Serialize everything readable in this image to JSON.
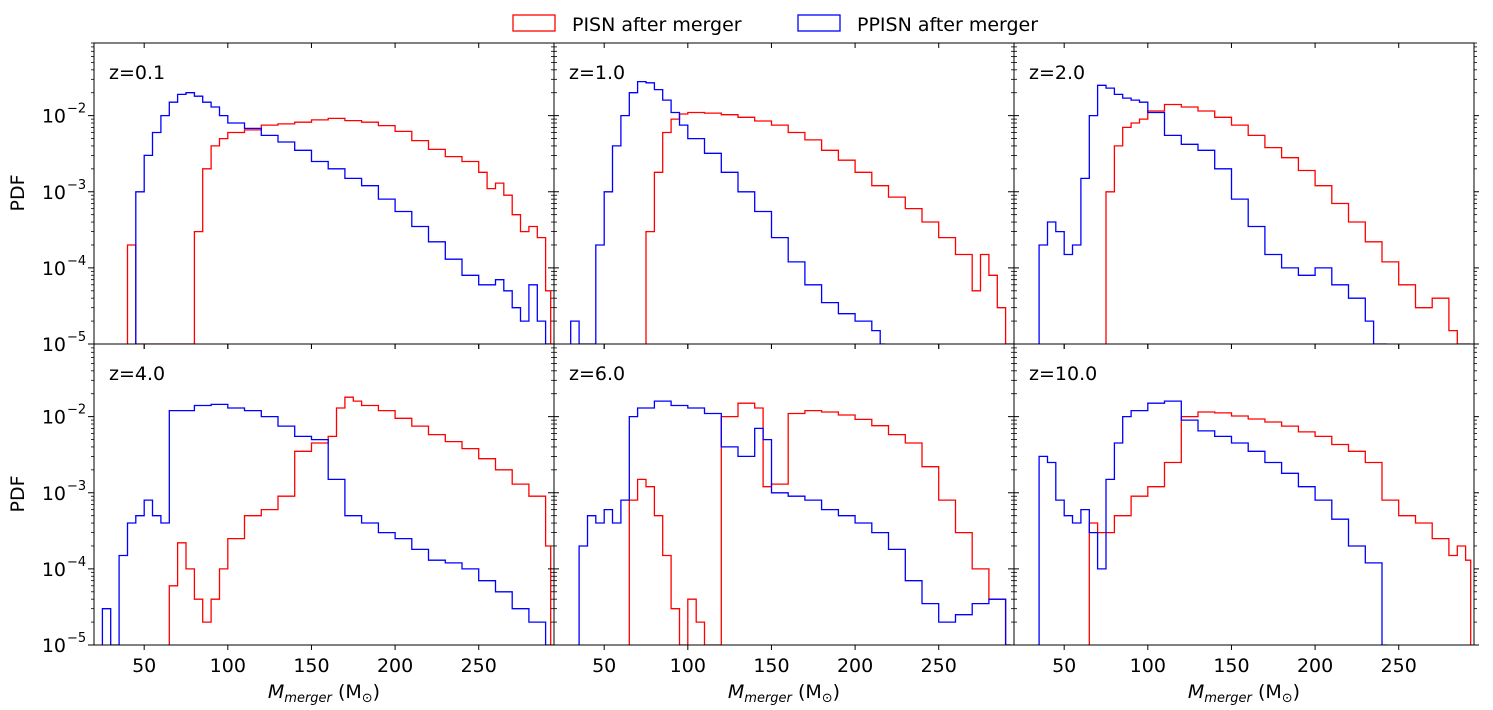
{
  "legend": [
    {
      "label": "PISN after merger",
      "color": "#ff0000"
    },
    {
      "label": "PPISN after merger",
      "color": "#0000ff"
    }
  ],
  "ylabel": "PDF",
  "xlabel_main": "M",
  "xlabel_sub": "merger",
  "xlabel_unit_open": " (M",
  "xlabel_unit_sub": "⊙",
  "xlabel_unit_close": ")",
  "chart_data": [
    {
      "type": "histogram-step",
      "panel": "z=0.1",
      "yscale": "log",
      "xlim": [
        20,
        295
      ],
      "ylim": [
        1e-05,
        0.09
      ],
      "series": [
        {
          "name": "PISN after merger",
          "color": "#ff0000",
          "x": [
            40,
            45,
            75,
            80,
            85,
            90,
            95,
            100,
            110,
            120,
            130,
            140,
            150,
            160,
            170,
            180,
            190,
            200,
            210,
            220,
            230,
            240,
            250,
            255,
            260,
            265,
            270,
            275,
            280,
            285,
            290,
            293
          ],
          "y": [
            0.0002,
            1e-05,
            1e-05,
            0.0003,
            0.002,
            0.004,
            0.005,
            0.006,
            0.0065,
            0.0075,
            0.0078,
            0.0082,
            0.0088,
            0.0092,
            0.0086,
            0.0082,
            0.0074,
            0.0062,
            0.0047,
            0.0036,
            0.0029,
            0.0025,
            0.0018,
            0.0011,
            0.0013,
            0.0009,
            0.0005,
            0.0003,
            0.00035,
            0.00025,
            5e-05,
            1e-05
          ]
        },
        {
          "name": "PPISN after merger",
          "color": "#0000ff",
          "x": [
            45,
            50,
            55,
            60,
            65,
            70,
            75,
            80,
            85,
            90,
            95,
            100,
            110,
            120,
            130,
            140,
            150,
            160,
            170,
            180,
            190,
            200,
            210,
            220,
            230,
            240,
            250,
            260,
            265,
            270,
            275,
            280,
            285,
            290
          ],
          "y": [
            0.001,
            0.003,
            0.006,
            0.01,
            0.015,
            0.019,
            0.02,
            0.018,
            0.015,
            0.013,
            0.01,
            0.008,
            0.0068,
            0.0055,
            0.0045,
            0.0035,
            0.0025,
            0.002,
            0.0015,
            0.0012,
            0.0008,
            0.00055,
            0.00035,
            0.00022,
            0.00013,
            8e-05,
            6e-05,
            7e-05,
            5e-05,
            3e-05,
            2e-05,
            6e-05,
            2e-05,
            1e-05
          ]
        }
      ]
    },
    {
      "type": "histogram-step",
      "panel": "z=1.0",
      "yscale": "log",
      "xlim": [
        20,
        295
      ],
      "ylim": [
        1e-05,
        0.09
      ],
      "series": [
        {
          "name": "PISN after merger",
          "color": "#ff0000",
          "x": [
            75,
            80,
            85,
            90,
            95,
            100,
            110,
            120,
            130,
            140,
            150,
            160,
            170,
            180,
            190,
            200,
            210,
            220,
            230,
            240,
            250,
            260,
            270,
            275,
            280,
            285,
            290,
            295
          ],
          "y": [
            0.0003,
            0.0018,
            0.006,
            0.009,
            0.0105,
            0.011,
            0.0108,
            0.0103,
            0.0095,
            0.0085,
            0.0075,
            0.006,
            0.0048,
            0.0035,
            0.0026,
            0.0018,
            0.0012,
            0.00085,
            0.0006,
            0.0004,
            0.00025,
            0.00015,
            5e-05,
            0.00015,
            8e-05,
            3e-05,
            1e-05,
            1e-05
          ]
        },
        {
          "name": "PPISN after merger",
          "color": "#0000ff",
          "x": [
            30,
            35,
            40,
            45,
            50,
            55,
            60,
            65,
            70,
            75,
            80,
            85,
            90,
            95,
            100,
            110,
            120,
            130,
            140,
            150,
            160,
            170,
            180,
            190,
            200,
            210,
            215
          ],
          "y": [
            2e-05,
            1e-05,
            1e-05,
            0.0002,
            0.001,
            0.004,
            0.01,
            0.02,
            0.028,
            0.027,
            0.022,
            0.016,
            0.011,
            0.0075,
            0.005,
            0.0032,
            0.0018,
            0.001,
            0.00055,
            0.00025,
            0.00012,
            6e-05,
            3.5e-05,
            2.5e-05,
            2e-05,
            1.5e-05,
            1e-05
          ]
        }
      ]
    },
    {
      "type": "histogram-step",
      "panel": "z=2.0",
      "yscale": "log",
      "xlim": [
        20,
        295
      ],
      "ylim": [
        1e-05,
        0.09
      ],
      "series": [
        {
          "name": "PISN after merger",
          "color": "#ff0000",
          "x": [
            75,
            80,
            85,
            90,
            95,
            100,
            110,
            120,
            130,
            140,
            150,
            160,
            170,
            180,
            190,
            200,
            210,
            220,
            230,
            240,
            250,
            260,
            270,
            280,
            285,
            290
          ],
          "y": [
            0.001,
            0.004,
            0.007,
            0.008,
            0.009,
            0.0115,
            0.014,
            0.013,
            0.0115,
            0.0095,
            0.0075,
            0.0055,
            0.0038,
            0.0028,
            0.0019,
            0.0012,
            0.0007,
            0.0004,
            0.00022,
            0.00012,
            6e-05,
            3e-05,
            4e-05,
            1.5e-05,
            1e-05,
            1e-05
          ]
        },
        {
          "name": "PPISN after merger",
          "color": "#0000ff",
          "x": [
            35,
            40,
            45,
            50,
            55,
            60,
            65,
            70,
            75,
            80,
            85,
            90,
            95,
            100,
            110,
            120,
            130,
            140,
            150,
            160,
            170,
            180,
            190,
            200,
            210,
            220,
            230,
            235,
            240
          ],
          "y": [
            0.0002,
            0.0004,
            0.0003,
            0.00015,
            0.0002,
            0.0015,
            0.01,
            0.025,
            0.023,
            0.019,
            0.017,
            0.016,
            0.015,
            0.011,
            0.0055,
            0.0042,
            0.0035,
            0.002,
            0.0008,
            0.00035,
            0.00015,
            0.0001,
            8e-05,
            0.0001,
            6e-05,
            4e-05,
            2e-05,
            1e-05,
            1e-05
          ]
        }
      ]
    },
    {
      "type": "histogram-step",
      "panel": "z=4.0",
      "yscale": "log",
      "xlim": [
        20,
        295
      ],
      "ylim": [
        1e-05,
        0.09
      ],
      "series": [
        {
          "name": "PISN after merger",
          "color": "#ff0000",
          "x": [
            65,
            70,
            75,
            80,
            85,
            90,
            95,
            100,
            110,
            120,
            130,
            140,
            150,
            160,
            165,
            170,
            175,
            180,
            190,
            200,
            210,
            220,
            230,
            240,
            250,
            260,
            270,
            280,
            290,
            293
          ],
          "y": [
            6e-05,
            0.00022,
            0.0001,
            4e-05,
            2e-05,
            4e-05,
            0.0001,
            0.00025,
            0.0005,
            0.0006,
            0.0009,
            0.0035,
            0.0045,
            0.0055,
            0.013,
            0.018,
            0.016,
            0.014,
            0.012,
            0.0095,
            0.0075,
            0.0058,
            0.0047,
            0.0038,
            0.0028,
            0.002,
            0.0013,
            0.0009,
            0.0002,
            1e-05
          ]
        },
        {
          "name": "PPISN after merger",
          "color": "#0000ff",
          "x": [
            25,
            30,
            35,
            40,
            45,
            50,
            55,
            60,
            65,
            70,
            80,
            90,
            100,
            110,
            120,
            130,
            140,
            150,
            160,
            170,
            180,
            190,
            200,
            210,
            220,
            230,
            240,
            250,
            260,
            270,
            280,
            290
          ],
          "y": [
            3e-05,
            1e-05,
            0.00015,
            0.0004,
            0.0005,
            0.0008,
            0.0005,
            0.0004,
            0.012,
            0.012,
            0.014,
            0.0145,
            0.013,
            0.012,
            0.01,
            0.0075,
            0.0055,
            0.005,
            0.0015,
            0.0005,
            0.0004,
            0.0003,
            0.00025,
            0.00018,
            0.00013,
            0.00012,
            0.0001,
            7e-05,
            5e-05,
            3e-05,
            2e-05,
            1e-05
          ]
        }
      ]
    },
    {
      "type": "histogram-step",
      "panel": "z=6.0",
      "yscale": "log",
      "xlim": [
        20,
        295
      ],
      "ylim": [
        1e-05,
        0.09
      ],
      "series": [
        {
          "name": "PISN after merger",
          "color": "#ff0000",
          "x": [
            65,
            70,
            75,
            80,
            85,
            90,
            95,
            100,
            105,
            110,
            115,
            120,
            130,
            140,
            145,
            150,
            160,
            170,
            180,
            190,
            200,
            210,
            220,
            230,
            240,
            250,
            260,
            270,
            280,
            290
          ],
          "y": [
            0.0008,
            0.0015,
            0.0012,
            0.0005,
            0.00015,
            3e-05,
            1e-05,
            4e-05,
            2e-05,
            1e-05,
            1e-05,
            0.01,
            0.015,
            0.013,
            0.0012,
            0.0013,
            0.011,
            0.012,
            0.0115,
            0.0105,
            0.0092,
            0.0076,
            0.0058,
            0.0045,
            0.0022,
            0.0008,
            0.0003,
            0.0001,
            4e-05,
            1e-05
          ]
        },
        {
          "name": "PPISN after merger",
          "color": "#0000ff",
          "x": [
            35,
            40,
            45,
            50,
            55,
            60,
            65,
            70,
            80,
            90,
            100,
            110,
            120,
            130,
            140,
            145,
            150,
            160,
            170,
            180,
            190,
            200,
            210,
            220,
            230,
            240,
            250,
            260,
            270,
            280,
            290
          ],
          "y": [
            0.0002,
            0.0005,
            0.0004,
            0.0006,
            0.0004,
            0.0008,
            0.01,
            0.013,
            0.016,
            0.014,
            0.013,
            0.011,
            0.004,
            0.003,
            0.007,
            0.005,
            0.001,
            0.0009,
            0.0008,
            0.0006,
            0.0005,
            0.0004,
            0.0003,
            0.00018,
            7e-05,
            3.5e-05,
            2e-05,
            2.5e-05,
            3.5e-05,
            4e-05,
            1e-05
          ]
        }
      ]
    },
    {
      "type": "histogram-step",
      "panel": "z=10.0",
      "yscale": "log",
      "xlim": [
        20,
        295
      ],
      "ylim": [
        1e-05,
        0.09
      ],
      "series": [
        {
          "name": "PISN after merger",
          "color": "#ff0000",
          "x": [
            65,
            70,
            80,
            90,
            100,
            110,
            120,
            130,
            140,
            150,
            160,
            170,
            180,
            190,
            200,
            210,
            220,
            230,
            240,
            250,
            260,
            270,
            280,
            285,
            290
          ],
          "y": [
            0.0004,
            0.0003,
            0.0005,
            0.0009,
            0.0012,
            0.0025,
            0.01,
            0.0115,
            0.0112,
            0.0102,
            0.0093,
            0.0085,
            0.0075,
            0.0063,
            0.0055,
            0.0043,
            0.0035,
            0.0025,
            0.0008,
            0.0005,
            0.0004,
            0.00025,
            0.00015,
            0.0002,
            0.00013
          ]
        },
        {
          "name": "PPISN after merger",
          "color": "#0000ff",
          "x": [
            35,
            40,
            45,
            50,
            55,
            60,
            65,
            70,
            75,
            80,
            85,
            90,
            100,
            110,
            120,
            130,
            140,
            150,
            160,
            170,
            180,
            190,
            200,
            210,
            220,
            230,
            240
          ],
          "y": [
            0.003,
            0.0025,
            0.0008,
            0.0005,
            0.0004,
            0.0006,
            0.0003,
            0.0001,
            0.0015,
            0.0045,
            0.01,
            0.012,
            0.015,
            0.016,
            0.009,
            0.0065,
            0.0055,
            0.0045,
            0.0035,
            0.0025,
            0.0018,
            0.0012,
            0.0008,
            0.00045,
            0.0002,
            0.00012,
            1e-05
          ]
        }
      ]
    }
  ],
  "panels": [
    {
      "label": "z=0.1",
      "xticks": [
        "50",
        "100",
        "150",
        "200",
        "250"
      ],
      "yticks": [
        "10",
        "10",
        "10",
        "10"
      ],
      "ytick_exps": [
        "−2",
        "−3",
        "−4",
        "−5"
      ]
    },
    {
      "label": "z=1.0",
      "xticks": [
        "50",
        "100",
        "150",
        "200",
        "250"
      ],
      "yticks": [],
      "ytick_exps": []
    },
    {
      "label": "z=2.0",
      "xticks": [
        "50",
        "100",
        "150",
        "200",
        "250"
      ],
      "yticks": [],
      "ytick_exps": []
    },
    {
      "label": "z=4.0",
      "xticks": [
        "50",
        "100",
        "150",
        "200",
        "250"
      ],
      "yticks": [
        "10",
        "10",
        "10",
        "10"
      ],
      "ytick_exps": [
        "−2",
        "−3",
        "−4",
        "−5"
      ]
    },
    {
      "label": "z=6.0",
      "xticks": [
        "50",
        "100",
        "150",
        "200",
        "250"
      ],
      "yticks": [],
      "ytick_exps": []
    },
    {
      "label": "z=10.0",
      "xticks": [
        "50",
        "100",
        "150",
        "200",
        "250"
      ],
      "yticks": [],
      "ytick_exps": []
    }
  ]
}
